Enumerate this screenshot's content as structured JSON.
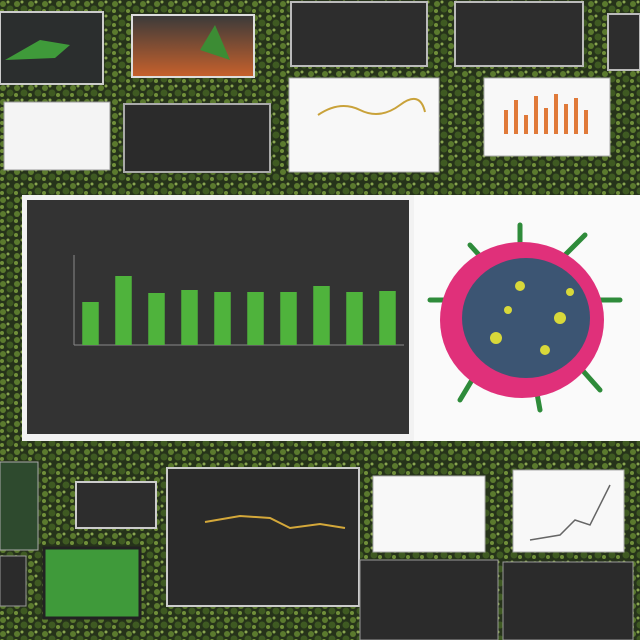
{
  "chart_data": {
    "type": "bar",
    "categories": [
      null,
      null,
      null,
      null,
      null,
      null,
      null,
      null,
      null,
      null
    ],
    "values": [
      43,
      69,
      52,
      55,
      53,
      53,
      53,
      59,
      53,
      54
    ],
    "color": "#4fb33c",
    "ylim": [
      0,
      100
    ]
  }
}
